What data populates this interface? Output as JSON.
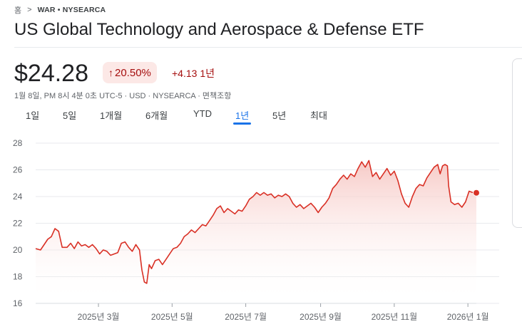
{
  "breadcrumb": {
    "home": "홈",
    "separator": ">",
    "ticker": "WAR • NYSEARCA"
  },
  "title": "US Global Technology and Aerospace & Defense ETF",
  "quote": {
    "price": "$24.28",
    "percent_change": "20.50%",
    "change_arrow": "↑",
    "change": "+4.13 1년",
    "meta": "1월 8일, PM 8시 4분 0초 UTC-5 · USD · NYSEARCA · 면책조항"
  },
  "tabs": [
    {
      "label": "1일",
      "active": false
    },
    {
      "label": "5일",
      "active": false
    },
    {
      "label": "1개월",
      "active": false
    },
    {
      "label": "6개월",
      "active": false
    },
    {
      "label": "YTD",
      "active": false
    },
    {
      "label": "1년",
      "active": true
    },
    {
      "label": "5년",
      "active": false
    },
    {
      "label": "최대",
      "active": false
    }
  ],
  "colors": {
    "line": "#d93025",
    "fill_top": "#f6c4c0",
    "grid": "#e8eaed",
    "accent": "#1a73e8"
  },
  "chart_data": {
    "type": "area",
    "ylim": [
      16,
      28
    ],
    "y_ticks": [
      16,
      18,
      20,
      22,
      24,
      26,
      28
    ],
    "x_range": [
      "2025-01-08",
      "2026-01-08"
    ],
    "x_ticks": [
      {
        "date": "2025-03-01",
        "label": "2025년 3월"
      },
      {
        "date": "2025-05-01",
        "label": "2025년 5월"
      },
      {
        "date": "2025-07-01",
        "label": "2025년 7월"
      },
      {
        "date": "2025-09-01",
        "label": "2025년 9월"
      },
      {
        "date": "2025-11-01",
        "label": "2025년 11월"
      },
      {
        "date": "2026-01-01",
        "label": "2026년 1월"
      }
    ],
    "series": [
      {
        "points": [
          [
            "2025-01-08",
            20.1
          ],
          [
            "2025-01-12",
            20.0
          ],
          [
            "2025-01-15",
            20.4
          ],
          [
            "2025-01-18",
            20.8
          ],
          [
            "2025-01-21",
            21.0
          ],
          [
            "2025-01-24",
            21.6
          ],
          [
            "2025-01-27",
            21.4
          ],
          [
            "2025-01-30",
            20.2
          ],
          [
            "2025-02-03",
            20.2
          ],
          [
            "2025-02-06",
            20.5
          ],
          [
            "2025-02-09",
            20.1
          ],
          [
            "2025-02-12",
            20.6
          ],
          [
            "2025-02-15",
            20.3
          ],
          [
            "2025-02-18",
            20.4
          ],
          [
            "2025-02-21",
            20.2
          ],
          [
            "2025-02-24",
            20.4
          ],
          [
            "2025-02-27",
            20.1
          ],
          [
            "2025-03-02",
            19.7
          ],
          [
            "2025-03-05",
            20.0
          ],
          [
            "2025-03-08",
            19.9
          ],
          [
            "2025-03-11",
            19.6
          ],
          [
            "2025-03-14",
            19.7
          ],
          [
            "2025-03-17",
            19.8
          ],
          [
            "2025-03-20",
            20.5
          ],
          [
            "2025-03-23",
            20.6
          ],
          [
            "2025-03-26",
            20.2
          ],
          [
            "2025-03-29",
            19.9
          ],
          [
            "2025-04-01",
            20.4
          ],
          [
            "2025-04-04",
            20.0
          ],
          [
            "2025-04-06",
            18.5
          ],
          [
            "2025-04-08",
            17.6
          ],
          [
            "2025-04-10",
            17.5
          ],
          [
            "2025-04-12",
            18.9
          ],
          [
            "2025-04-14",
            18.6
          ],
          [
            "2025-04-17",
            19.2
          ],
          [
            "2025-04-20",
            19.3
          ],
          [
            "2025-04-23",
            18.9
          ],
          [
            "2025-04-26",
            19.3
          ],
          [
            "2025-04-29",
            19.7
          ],
          [
            "2025-05-02",
            20.1
          ],
          [
            "2025-05-05",
            20.2
          ],
          [
            "2025-05-08",
            20.5
          ],
          [
            "2025-05-11",
            21.0
          ],
          [
            "2025-05-14",
            21.2
          ],
          [
            "2025-05-17",
            21.5
          ],
          [
            "2025-05-20",
            21.3
          ],
          [
            "2025-05-23",
            21.6
          ],
          [
            "2025-05-26",
            21.9
          ],
          [
            "2025-05-29",
            21.8
          ],
          [
            "2025-06-01",
            22.2
          ],
          [
            "2025-06-04",
            22.6
          ],
          [
            "2025-06-07",
            23.1
          ],
          [
            "2025-06-10",
            23.3
          ],
          [
            "2025-06-13",
            22.8
          ],
          [
            "2025-06-16",
            23.1
          ],
          [
            "2025-06-19",
            22.9
          ],
          [
            "2025-06-22",
            22.7
          ],
          [
            "2025-06-25",
            23.0
          ],
          [
            "2025-06-28",
            22.9
          ],
          [
            "2025-07-01",
            23.3
          ],
          [
            "2025-07-04",
            23.8
          ],
          [
            "2025-07-07",
            24.0
          ],
          [
            "2025-07-10",
            24.3
          ],
          [
            "2025-07-13",
            24.1
          ],
          [
            "2025-07-16",
            24.3
          ],
          [
            "2025-07-19",
            24.1
          ],
          [
            "2025-07-22",
            24.2
          ],
          [
            "2025-07-25",
            23.9
          ],
          [
            "2025-07-28",
            24.1
          ],
          [
            "2025-07-31",
            24.0
          ],
          [
            "2025-08-03",
            24.2
          ],
          [
            "2025-08-06",
            24.0
          ],
          [
            "2025-08-09",
            23.5
          ],
          [
            "2025-08-12",
            23.2
          ],
          [
            "2025-08-15",
            23.4
          ],
          [
            "2025-08-18",
            23.1
          ],
          [
            "2025-08-21",
            23.3
          ],
          [
            "2025-08-24",
            23.5
          ],
          [
            "2025-08-27",
            23.2
          ],
          [
            "2025-08-30",
            22.8
          ],
          [
            "2025-09-02",
            23.2
          ],
          [
            "2025-09-05",
            23.5
          ],
          [
            "2025-09-08",
            23.9
          ],
          [
            "2025-09-11",
            24.6
          ],
          [
            "2025-09-14",
            24.9
          ],
          [
            "2025-09-17",
            25.3
          ],
          [
            "2025-09-20",
            25.6
          ],
          [
            "2025-09-23",
            25.3
          ],
          [
            "2025-09-26",
            25.7
          ],
          [
            "2025-09-29",
            25.5
          ],
          [
            "2025-10-02",
            26.1
          ],
          [
            "2025-10-05",
            26.6
          ],
          [
            "2025-10-08",
            26.2
          ],
          [
            "2025-10-11",
            26.7
          ],
          [
            "2025-10-14",
            25.5
          ],
          [
            "2025-10-17",
            25.8
          ],
          [
            "2025-10-20",
            25.3
          ],
          [
            "2025-10-23",
            25.7
          ],
          [
            "2025-10-26",
            26.1
          ],
          [
            "2025-10-29",
            25.6
          ],
          [
            "2025-11-01",
            25.9
          ],
          [
            "2025-11-04",
            25.2
          ],
          [
            "2025-11-07",
            24.2
          ],
          [
            "2025-11-10",
            23.5
          ],
          [
            "2025-11-13",
            23.2
          ],
          [
            "2025-11-16",
            24.0
          ],
          [
            "2025-11-19",
            24.6
          ],
          [
            "2025-11-22",
            24.9
          ],
          [
            "2025-11-25",
            24.8
          ],
          [
            "2025-11-28",
            25.4
          ],
          [
            "2025-12-01",
            25.8
          ],
          [
            "2025-12-04",
            26.2
          ],
          [
            "2025-12-07",
            26.4
          ],
          [
            "2025-12-09",
            25.7
          ],
          [
            "2025-12-11",
            26.3
          ],
          [
            "2025-12-13",
            26.4
          ],
          [
            "2025-12-15",
            26.3
          ],
          [
            "2025-12-16",
            24.8
          ],
          [
            "2025-12-18",
            23.6
          ],
          [
            "2025-12-21",
            23.4
          ],
          [
            "2025-12-24",
            23.5
          ],
          [
            "2025-12-27",
            23.2
          ],
          [
            "2025-12-30",
            23.6
          ],
          [
            "2026-01-02",
            24.4
          ],
          [
            "2026-01-05",
            24.3
          ],
          [
            "2026-01-08",
            24.28
          ]
        ]
      }
    ]
  }
}
